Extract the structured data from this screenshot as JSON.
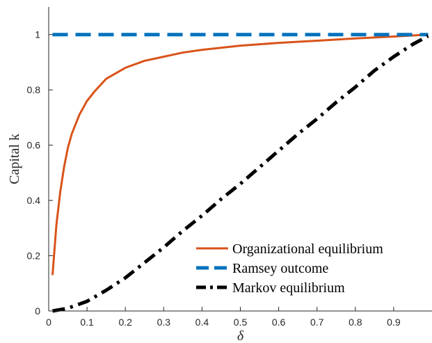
{
  "chart_data": {
    "type": "line",
    "xlabel": "δ",
    "ylabel": "Capital k",
    "xlim": [
      0,
      1
    ],
    "ylim": [
      0,
      1.1
    ],
    "x_ticks": [
      0,
      0.1,
      0.2,
      0.3,
      0.4,
      0.5,
      0.6,
      0.7,
      0.8,
      0.9
    ],
    "x_tick_labels": [
      "0",
      "0.1",
      "0.2",
      "0.3",
      "0.4",
      "0.5",
      "0.6",
      "0.7",
      "0.8",
      "0.9"
    ],
    "y_ticks": [
      0,
      0.2,
      0.4,
      0.6,
      0.8,
      1
    ],
    "y_tick_labels": [
      "0",
      "0.2",
      "0.4",
      "0.6",
      "0.8",
      "1"
    ],
    "grid": false,
    "legend_position": "bottom-right",
    "series": [
      {
        "name": "Organizational equilibrium",
        "color": "#d95319",
        "line_style": "solid",
        "x": [
          0.01,
          0.02,
          0.03,
          0.04,
          0.05,
          0.06,
          0.08,
          0.1,
          0.12,
          0.15,
          0.2,
          0.25,
          0.3,
          0.35,
          0.4,
          0.5,
          0.6,
          0.7,
          0.8,
          0.9,
          0.99
        ],
        "y": [
          0.13,
          0.31,
          0.43,
          0.52,
          0.59,
          0.64,
          0.71,
          0.76,
          0.795,
          0.84,
          0.88,
          0.905,
          0.92,
          0.935,
          0.945,
          0.96,
          0.97,
          0.978,
          0.986,
          0.993,
          1.0
        ]
      },
      {
        "name": "Ramsey outcome",
        "color": "#0072bd",
        "line_style": "dashed",
        "x": [
          0.01,
          0.99
        ],
        "y": [
          1.0,
          1.0
        ]
      },
      {
        "name": "Markov equilibrium",
        "color": "#000000",
        "line_style": "dashdot",
        "x": [
          0.01,
          0.05,
          0.1,
          0.15,
          0.2,
          0.25,
          0.3,
          0.35,
          0.4,
          0.45,
          0.5,
          0.55,
          0.6,
          0.65,
          0.7,
          0.75,
          0.8,
          0.85,
          0.9,
          0.95,
          0.99
        ],
        "y": [
          0.0,
          0.01,
          0.035,
          0.075,
          0.12,
          0.175,
          0.23,
          0.29,
          0.345,
          0.405,
          0.46,
          0.52,
          0.58,
          0.64,
          0.695,
          0.755,
          0.81,
          0.87,
          0.92,
          0.965,
          0.995
        ]
      }
    ]
  }
}
